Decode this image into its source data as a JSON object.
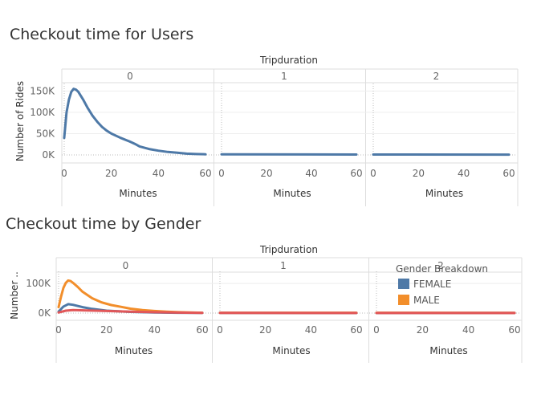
{
  "chart_data": [
    {
      "type": "line",
      "title": "Checkout time for Users",
      "column_header": "Tripduration",
      "panes": [
        "0",
        "1",
        "2"
      ],
      "xlabel": "Minutes",
      "ylabel": "Number of Rides",
      "xlim": [
        0,
        60
      ],
      "x_ticks": [
        "0",
        "20",
        "40",
        "60"
      ],
      "ylim": [
        0,
        160000
      ],
      "y_ticks": [
        {
          "value": 0,
          "label": "0K"
        },
        {
          "value": 50000,
          "label": "50K"
        },
        {
          "value": 100000,
          "label": "100K"
        },
        {
          "value": 150000,
          "label": "150K"
        }
      ],
      "series": [
        {
          "color": "#4e79a7",
          "values_by_pane": [
            [
              [
                0,
                40000
              ],
              [
                1,
                100000
              ],
              [
                2,
                130000
              ],
              [
                3,
                148000
              ],
              [
                4,
                155000
              ],
              [
                5,
                153000
              ],
              [
                6,
                148000
              ],
              [
                8,
                130000
              ],
              [
                10,
                110000
              ],
              [
                12,
                92000
              ],
              [
                14,
                78000
              ],
              [
                16,
                66000
              ],
              [
                18,
                57000
              ],
              [
                20,
                50000
              ],
              [
                24,
                40000
              ],
              [
                28,
                31000
              ],
              [
                30,
                26000
              ],
              [
                32,
                20000
              ],
              [
                36,
                14000
              ],
              [
                40,
                10000
              ],
              [
                44,
                7000
              ],
              [
                48,
                5000
              ],
              [
                52,
                3000
              ],
              [
                56,
                2000
              ],
              [
                60,
                1500
              ]
            ],
            [
              [
                0,
                1500
              ],
              [
                60,
                1000
              ]
            ],
            [
              [
                0,
                1000
              ],
              [
                60,
                800
              ]
            ]
          ]
        }
      ]
    },
    {
      "type": "line",
      "title": "Checkout time by Gender",
      "column_header": "Tripduration",
      "panes": [
        "0",
        "1",
        "2"
      ],
      "xlabel": "Minutes",
      "ylabel": "Number ..",
      "xlim": [
        0,
        60
      ],
      "x_ticks": [
        "0",
        "20",
        "40",
        "60"
      ],
      "ylim": [
        0,
        130000
      ],
      "y_ticks": [
        {
          "value": 0,
          "label": "0K"
        },
        {
          "value": 100000,
          "label": "100K"
        }
      ],
      "legend": {
        "title": "Gender Breakdown",
        "position": "top-right"
      },
      "series": [
        {
          "name": "FEMALE",
          "color": "#4e79a7",
          "values_by_pane": [
            [
              [
                0,
                5000
              ],
              [
                2,
                22000
              ],
              [
                4,
                30000
              ],
              [
                6,
                28000
              ],
              [
                10,
                20000
              ],
              [
                14,
                14000
              ],
              [
                20,
                8000
              ],
              [
                30,
                4000
              ],
              [
                40,
                2000
              ],
              [
                50,
                1000
              ],
              [
                60,
                500
              ]
            ],
            [
              [
                0,
                500
              ],
              [
                60,
                400
              ]
            ],
            [
              [
                0,
                400
              ],
              [
                60,
                300
              ]
            ]
          ]
        },
        {
          "name": "MALE",
          "color": "#f28e2b",
          "values_by_pane": [
            [
              [
                0,
                20000
              ],
              [
                1,
                55000
              ],
              [
                2,
                85000
              ],
              [
                3,
                102000
              ],
              [
                4,
                110000
              ],
              [
                5,
                108000
              ],
              [
                6,
                102000
              ],
              [
                8,
                88000
              ],
              [
                10,
                72000
              ],
              [
                14,
                50000
              ],
              [
                18,
                36000
              ],
              [
                22,
                27000
              ],
              [
                26,
                21000
              ],
              [
                30,
                15000
              ],
              [
                35,
                10000
              ],
              [
                40,
                7000
              ],
              [
                45,
                4500
              ],
              [
                50,
                3000
              ],
              [
                55,
                1800
              ],
              [
                60,
                1200
              ]
            ],
            [
              [
                0,
                1200
              ],
              [
                60,
                1000
              ]
            ],
            [
              [
                0,
                1000
              ],
              [
                60,
                800
              ]
            ]
          ]
        },
        {
          "color": "#e15759",
          "values_by_pane": [
            [
              [
                0,
                2000
              ],
              [
                3,
                8000
              ],
              [
                6,
                10000
              ],
              [
                12,
                9000
              ],
              [
                20,
                7000
              ],
              [
                30,
                5000
              ],
              [
                40,
                3000
              ],
              [
                50,
                1500
              ],
              [
                60,
                700
              ]
            ],
            [
              [
                0,
                500
              ],
              [
                60,
                400
              ]
            ],
            [
              [
                0,
                400
              ],
              [
                60,
                300
              ]
            ]
          ]
        }
      ]
    }
  ]
}
